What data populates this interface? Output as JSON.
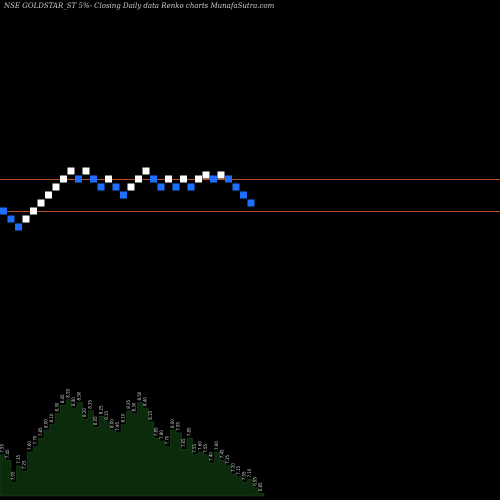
{
  "chart_data": {
    "type": "renko",
    "title": "NSE GOLDSTAR_ST 5%- Closing Daily data Renko charts MunafaSutra.com",
    "colors": {
      "background": "#000000",
      "up_brick": "#ffffff",
      "down_brick": "#1e6fff",
      "reference_line": "#b5501e",
      "volume_fill": "#0c2a0c"
    },
    "reference_lines": [
      {
        "name": "upper",
        "price": 8.4
      },
      {
        "name": "lower",
        "price": 7.6
      }
    ],
    "bricks": [
      {
        "price": 7.6,
        "dir": "down"
      },
      {
        "price": 7.4,
        "dir": "down"
      },
      {
        "price": 7.2,
        "dir": "down"
      },
      {
        "price": 7.4,
        "dir": "up"
      },
      {
        "price": 7.6,
        "dir": "up"
      },
      {
        "price": 7.8,
        "dir": "up"
      },
      {
        "price": 8.0,
        "dir": "up"
      },
      {
        "price": 8.2,
        "dir": "up"
      },
      {
        "price": 8.4,
        "dir": "up"
      },
      {
        "price": 8.6,
        "dir": "up"
      },
      {
        "price": 8.4,
        "dir": "down"
      },
      {
        "price": 8.6,
        "dir": "up"
      },
      {
        "price": 8.4,
        "dir": "down"
      },
      {
        "price": 8.2,
        "dir": "down"
      },
      {
        "price": 8.4,
        "dir": "up"
      },
      {
        "price": 8.2,
        "dir": "down"
      },
      {
        "price": 8.0,
        "dir": "down"
      },
      {
        "price": 8.2,
        "dir": "up"
      },
      {
        "price": 8.4,
        "dir": "up"
      },
      {
        "price": 8.6,
        "dir": "up"
      },
      {
        "price": 8.4,
        "dir": "down"
      },
      {
        "price": 8.2,
        "dir": "down"
      },
      {
        "price": 8.4,
        "dir": "up"
      },
      {
        "price": 8.2,
        "dir": "down"
      },
      {
        "price": 8.4,
        "dir": "up"
      },
      {
        "price": 8.2,
        "dir": "down"
      },
      {
        "price": 8.4,
        "dir": "up"
      },
      {
        "price": 8.5,
        "dir": "up"
      },
      {
        "price": 8.4,
        "dir": "down"
      },
      {
        "price": 8.5,
        "dir": "up"
      },
      {
        "price": 8.4,
        "dir": "down"
      },
      {
        "price": 8.2,
        "dir": "down"
      },
      {
        "price": 8.0,
        "dir": "down"
      },
      {
        "price": 7.8,
        "dir": "down"
      }
    ],
    "volume_labels": [
      "7.55",
      "7.45",
      "7.05",
      "7.35",
      "7.25",
      "7.60",
      "7.70",
      "7.85",
      "8.00",
      "8.10",
      "8.30",
      "8.45",
      "8.55",
      "8.40",
      "8.50",
      "8.20",
      "8.35",
      "8.05",
      "8.25",
      "8.15",
      "8.00",
      "7.95",
      "8.10",
      "8.35",
      "8.30",
      "8.50",
      "8.40",
      "8.15",
      "7.85",
      "7.80",
      "7.70",
      "8.00",
      "7.95",
      "7.65",
      "7.85",
      "7.55",
      "7.60",
      "7.55",
      "7.40",
      "7.60",
      "7.45",
      "7.35",
      "7.20",
      "7.15",
      "7.05",
      "7.10",
      "6.95",
      "6.85"
    ]
  }
}
